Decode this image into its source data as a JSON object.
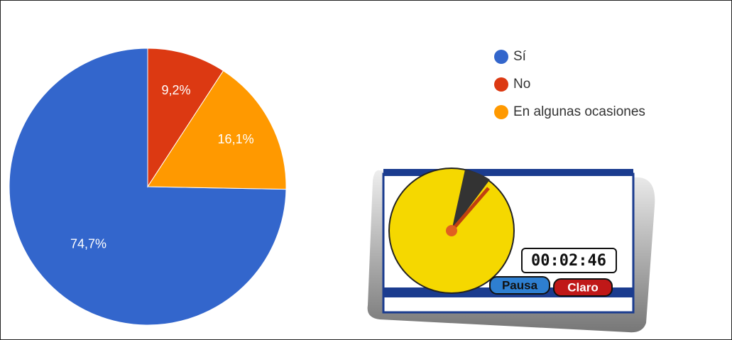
{
  "chart_data": {
    "type": "pie",
    "series": [
      {
        "name": "Sí",
        "color": "#3366cc",
        "values": [
          74.7
        ],
        "value_labels": [
          "74,7%"
        ]
      },
      {
        "name": "No",
        "color": "#dc3912",
        "values": [
          9.2
        ],
        "value_labels": [
          "9,2%"
        ]
      },
      {
        "name": "En algunas ocasiones",
        "color": "#ff9900",
        "values": [
          16.1
        ],
        "value_labels": [
          "16,1%"
        ]
      }
    ],
    "legend": "top-right"
  },
  "timer": {
    "time": "00:02:46",
    "buttons": [
      "Pausa",
      "Claro"
    ]
  }
}
